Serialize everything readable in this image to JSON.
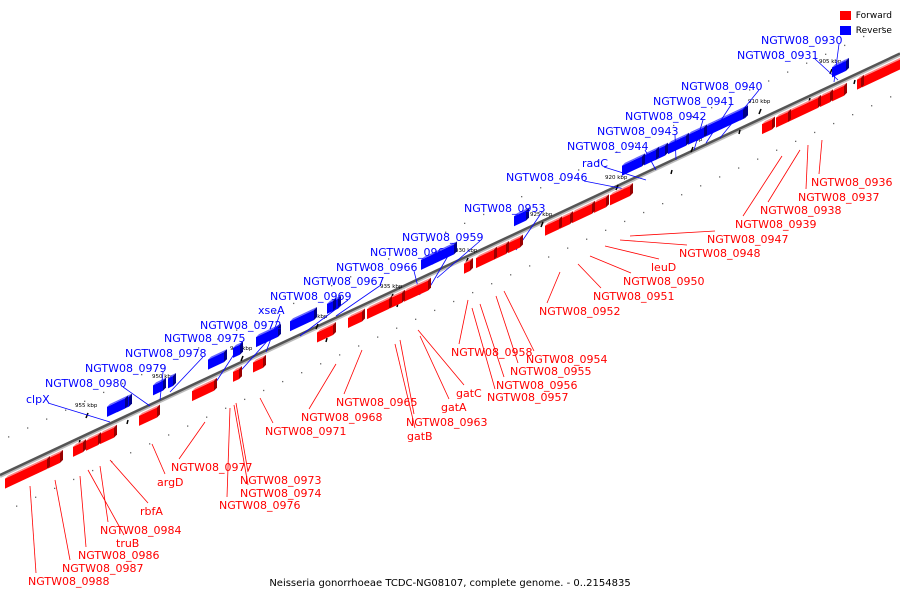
{
  "legend": {
    "forward_label": "Forward",
    "reverse_label": "Reverse",
    "forward_color": "#ff0000",
    "reverse_color": "#0000ff"
  },
  "caption": "Neisseria gonorrhoeae TCDC-NG08107, complete genome. - 0..2154835",
  "ticks": [
    "905 kbp",
    "910 kbp",
    "915 kbp",
    "920 kbp",
    "925 kbp",
    "930 kbp",
    "935 kbp",
    "940 kbp",
    "945 kbp",
    "950 kbp",
    "955 kbp"
  ],
  "reverse_genes": [
    "NGTW08_0930",
    "NGTW08_0931",
    "NGTW08_0940",
    "NGTW08_0941",
    "NGTW08_0942",
    "NGTW08_0943",
    "NGTW08_0944",
    "radC",
    "NGTW08_0946",
    "NGTW08_0953",
    "NGTW08_0959",
    "NGTW08_0960",
    "NGTW08_0966",
    "NGTW08_0967",
    "NGTW08_0969",
    "xseA",
    "NGTW08_0972",
    "NGTW08_0975",
    "NGTW08_0978",
    "NGTW08_0979",
    "NGTW08_0980",
    "clpX"
  ],
  "forward_genes": [
    "NGTW08_0936",
    "NGTW08_0937",
    "NGTW08_0938",
    "NGTW08_0939",
    "NGTW08_0947",
    "NGTW08_0948",
    "leuD",
    "NGTW08_0950",
    "NGTW08_0951",
    "NGTW08_0952",
    "NGTW08_0954",
    "NGTW08_0955",
    "NGTW08_0956",
    "NGTW08_0957",
    "NGTW08_0958",
    "gatC",
    "gatA",
    "NGTW08_0963",
    "gatB",
    "NGTW08_0965",
    "NGTW08_0968",
    "NGTW08_0971",
    "NGTW08_0973",
    "NGTW08_0974",
    "NGTW08_0976",
    "NGTW08_0977",
    "argD",
    "rbfA",
    "NGTW08_0984",
    "truB",
    "NGTW08_0986",
    "NGTW08_0987",
    "NGTW08_0988"
  ]
}
